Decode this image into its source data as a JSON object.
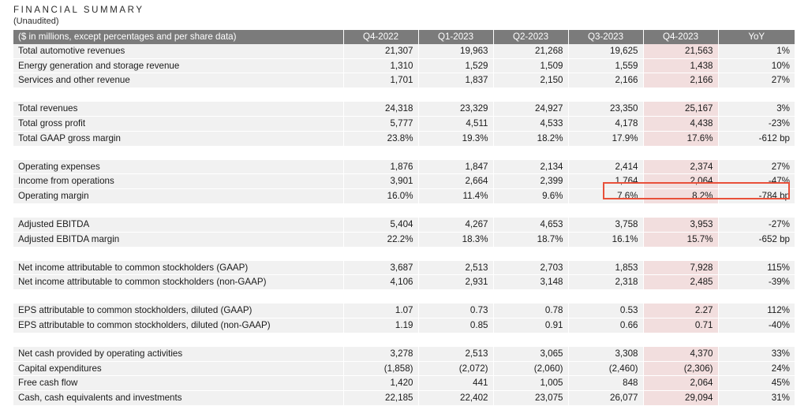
{
  "header": {
    "title": "FINANCIAL SUMMARY",
    "subtitle": "(Unaudited)"
  },
  "table": {
    "columns": [
      "($ in millions, except percentages and per share data)",
      "Q4-2022",
      "Q1-2023",
      "Q2-2023",
      "Q3-2023",
      "Q4-2023",
      "YoY"
    ],
    "groups": [
      [
        [
          "Total automotive revenues",
          "21,307",
          "19,963",
          "21,268",
          "19,625",
          "21,563",
          "1%"
        ],
        [
          "Energy generation and storage revenue",
          "1,310",
          "1,529",
          "1,509",
          "1,559",
          "1,438",
          "10%"
        ],
        [
          "Services and other revenue",
          "1,701",
          "1,837",
          "2,150",
          "2,166",
          "2,166",
          "27%"
        ]
      ],
      [
        [
          "Total revenues",
          "24,318",
          "23,329",
          "24,927",
          "23,350",
          "25,167",
          "3%"
        ],
        [
          "Total gross profit",
          "5,777",
          "4,511",
          "4,533",
          "4,178",
          "4,438",
          "-23%"
        ],
        [
          "Total GAAP gross margin",
          "23.8%",
          "19.3%",
          "18.2%",
          "17.9%",
          "17.6%",
          "-612 bp"
        ]
      ],
      [
        [
          "Operating expenses",
          "1,876",
          "1,847",
          "2,134",
          "2,414",
          "2,374",
          "27%"
        ],
        [
          "Income from operations",
          "3,901",
          "2,664",
          "2,399",
          "1,764",
          "2,064",
          "-47%"
        ],
        [
          "Operating margin",
          "16.0%",
          "11.4%",
          "9.6%",
          "7.6%",
          "8.2%",
          "-784 bp"
        ]
      ],
      [
        [
          "Adjusted EBITDA",
          "5,404",
          "4,267",
          "4,653",
          "3,758",
          "3,953",
          "-27%"
        ],
        [
          "Adjusted EBITDA margin",
          "22.2%",
          "18.3%",
          "18.7%",
          "16.1%",
          "15.7%",
          "-652 bp"
        ]
      ],
      [
        [
          "Net income attributable to common stockholders (GAAP)",
          "3,687",
          "2,513",
          "2,703",
          "1,853",
          "7,928",
          "115%"
        ],
        [
          "Net income attributable to common stockholders (non-GAAP)",
          "4,106",
          "2,931",
          "3,148",
          "2,318",
          "2,485",
          "-39%"
        ]
      ],
      [
        [
          "EPS attributable to common stockholders, diluted (GAAP)",
          "1.07",
          "0.73",
          "0.78",
          "0.53",
          "2.27",
          "112%"
        ],
        [
          "EPS attributable to common stockholders, diluted (non-GAAP)",
          "1.19",
          "0.85",
          "0.91",
          "0.66",
          "0.71",
          "-40%"
        ]
      ],
      [
        [
          "Net cash provided by operating activities",
          "3,278",
          "2,513",
          "3,065",
          "3,308",
          "4,370",
          "33%"
        ],
        [
          "Capital expenditures",
          "(1,858)",
          "(2,072)",
          "(2,060)",
          "(2,460)",
          "(2,306)",
          "24%"
        ],
        [
          "Free cash flow",
          "1,420",
          "441",
          "1,005",
          "848",
          "2,064",
          "45%"
        ],
        [
          "Cash, cash equivalents and investments",
          "22,185",
          "22,402",
          "23,075",
          "26,077",
          "29,094",
          "31%"
        ]
      ]
    ]
  },
  "highlight": {
    "column_color": "#f2dede",
    "box_color": "#e8503a"
  }
}
